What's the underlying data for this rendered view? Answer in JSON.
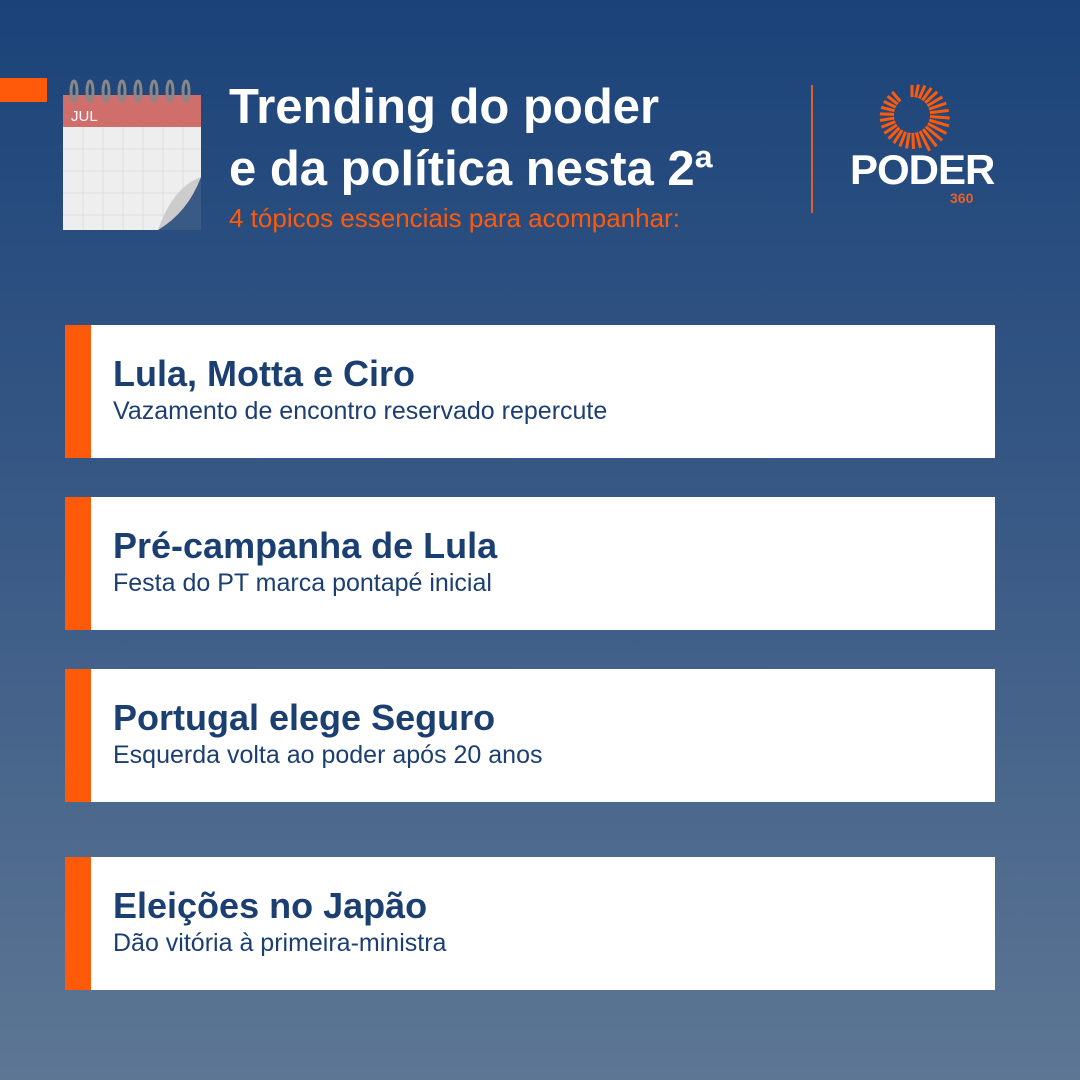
{
  "header": {
    "title_line1": "Trending do poder",
    "title_line2": "e da política nesta 2ª",
    "subtitle": "4 tópicos essenciais para acompanhar:",
    "calendar_month": "JUL"
  },
  "logo": {
    "word": "PODER",
    "number": "360"
  },
  "colors": {
    "accent": "#ff5a0a",
    "text": "#1c3f72",
    "bg_top": "#1b4379",
    "bg_bottom": "#5d7694"
  },
  "topics": [
    {
      "title": "Lula, Motta e Ciro",
      "subtitle": "Vazamento de encontro reservado repercute"
    },
    {
      "title": "Pré-campanha de Lula",
      "subtitle": "Festa do PT marca pontapé inicial"
    },
    {
      "title": "Portugal elege Seguro",
      "subtitle": "Esquerda volta ao poder após 20 anos"
    },
    {
      "title": "Eleições no Japão",
      "subtitle": "Dão vitória à primeira-ministra"
    }
  ]
}
